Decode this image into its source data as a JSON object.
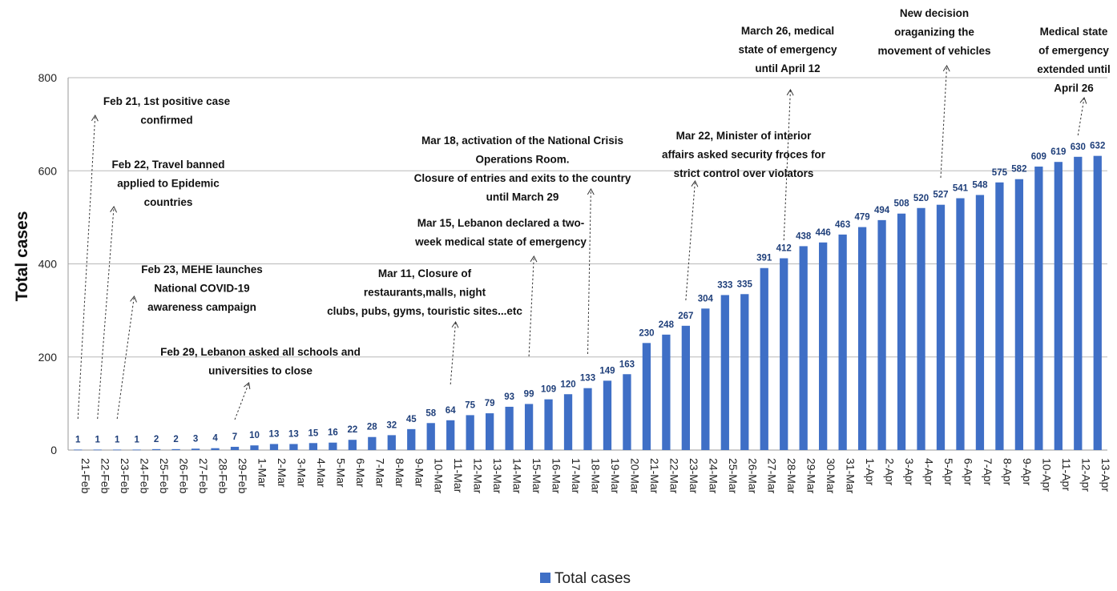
{
  "chart_data": {
    "type": "bar",
    "ylabel": "Total cases",
    "ylim": [
      0,
      800
    ],
    "yticks": [
      0,
      200,
      400,
      600,
      800
    ],
    "grid": true,
    "legend_position": "bottom",
    "bar_color": "#3f6fc6",
    "series": [
      {
        "name": "Total cases",
        "values": [
          1,
          1,
          1,
          1,
          2,
          2,
          3,
          4,
          7,
          10,
          13,
          13,
          15,
          16,
          22,
          28,
          32,
          45,
          58,
          64,
          75,
          79,
          93,
          99,
          109,
          120,
          133,
          149,
          163,
          230,
          248,
          267,
          304,
          333,
          335,
          391,
          412,
          438,
          446,
          463,
          479,
          494,
          508,
          520,
          527,
          541,
          548,
          575,
          582,
          609,
          619,
          630,
          632
        ]
      }
    ],
    "categories": [
      "21-Feb",
      "22-Feb",
      "23-Feb",
      "24-Feb",
      "25-Feb",
      "26-Feb",
      "27-Feb",
      "28-Feb",
      "29-Feb",
      "1-Mar",
      "2-Mar",
      "3-Mar",
      "4-Mar",
      "5-Mar",
      "6-Mar",
      "7-Mar",
      "8-Mar",
      "9-Mar",
      "10-Mar",
      "11-Mar",
      "12-Mar",
      "13-Mar",
      "14-Mar",
      "15-Mar",
      "16-Mar",
      "17-Mar",
      "18-Mar",
      "19-Mar",
      "20-Mar",
      "21-Mar",
      "22-Mar",
      "23-Mar",
      "24-Mar",
      "25-Mar",
      "26-Mar",
      "27-Mar",
      "28-Mar",
      "29-Mar",
      "30-Mar",
      "31-Mar",
      "1-Apr",
      "2-Apr",
      "3-Apr",
      "4-Apr",
      "5-Apr",
      "6-Apr",
      "7-Apr",
      "8-Apr",
      "9-Apr",
      "10-Apr",
      "11-Apr",
      "12-Apr",
      "13-Apr"
    ],
    "annotations": [
      {
        "target": "21-Feb",
        "lines": [
          "Feb 21, 1st positive case",
          "confirmed"
        ]
      },
      {
        "target": "22-Feb",
        "lines": [
          "Feb 22, Travel banned",
          "applied to Epidemic",
          "countries"
        ]
      },
      {
        "target": "23-Feb",
        "lines": [
          "Feb 23, MEHE launches",
          "National COVID-19",
          "awareness campaign"
        ]
      },
      {
        "target": "29-Feb",
        "lines": [
          "Feb 29, Lebanon asked all schools and",
          "universities to close"
        ]
      },
      {
        "target": "11-Mar",
        "lines": [
          "Mar 11, Closure of",
          "restaurants,malls, night",
          "clubs, pubs, gyms, touristic sites...etc"
        ]
      },
      {
        "target": "15-Mar",
        "lines": [
          "Mar 15, Lebanon declared a two-",
          "week medical state of emergency"
        ]
      },
      {
        "target": "18-Mar",
        "lines": [
          "Mar 18, activation of the National Crisis",
          "Operations Room.",
          "Closure of entries and exits to the country",
          "until March 29"
        ]
      },
      {
        "target": "23-Mar",
        "lines": [
          "Mar 22, Minister of interior",
          "affairs asked security froces for",
          "strict control over violators"
        ]
      },
      {
        "target": "28-Mar",
        "lines": [
          "March 26, medical",
          "state of emergency",
          "until April 12"
        ]
      },
      {
        "target": "5-Apr",
        "lines": [
          "New decision",
          "oraganizing the",
          "movement of vehicles"
        ]
      },
      {
        "target": "12-Apr",
        "lines": [
          "Medical state",
          "of emergency",
          "extended until",
          "April 26"
        ]
      }
    ]
  }
}
